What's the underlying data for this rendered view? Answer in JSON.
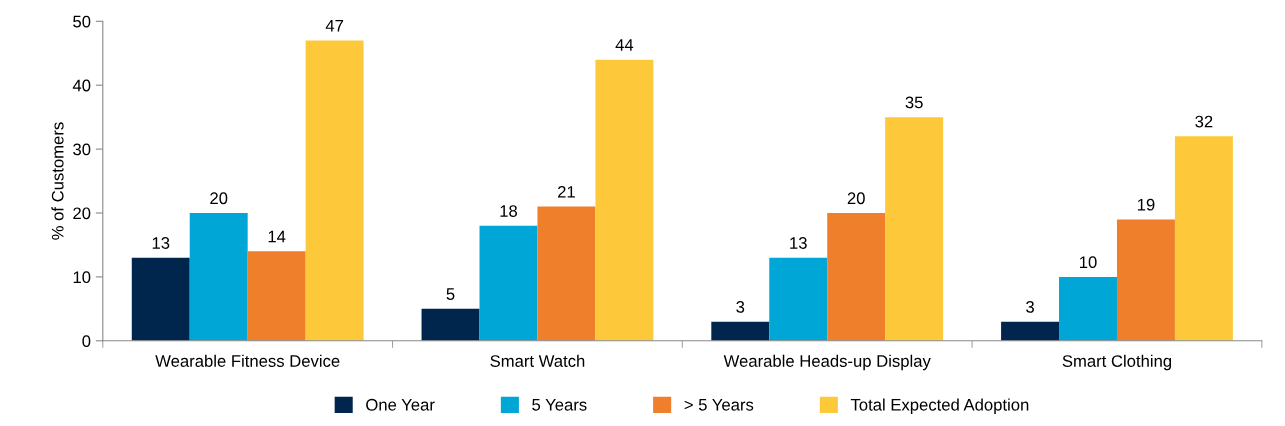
{
  "chart_data": {
    "type": "bar",
    "ylabel": "% of Customers",
    "categories": [
      "Wearable Fitness Device",
      "Smart Watch",
      "Wearable Heads-up Display",
      "Smart Clothing"
    ],
    "series": [
      {
        "name": "One Year",
        "color": "#00264d",
        "values": [
          13,
          5,
          3,
          3
        ]
      },
      {
        "name": "5 Years",
        "color": "#00a7d6",
        "values": [
          20,
          18,
          13,
          10
        ]
      },
      {
        "name": "> 5 Years",
        "color": "#f07f2b",
        "values": [
          14,
          21,
          20,
          19
        ]
      },
      {
        "name": "Total Expected Adoption",
        "color": "#fdc93b",
        "values": [
          47,
          44,
          35,
          32
        ]
      }
    ],
    "ylim": [
      0,
      50
    ],
    "yticks": [
      0,
      10,
      20,
      30,
      40,
      50
    ],
    "data_labels": true,
    "grid": false,
    "legend": "bottom"
  }
}
